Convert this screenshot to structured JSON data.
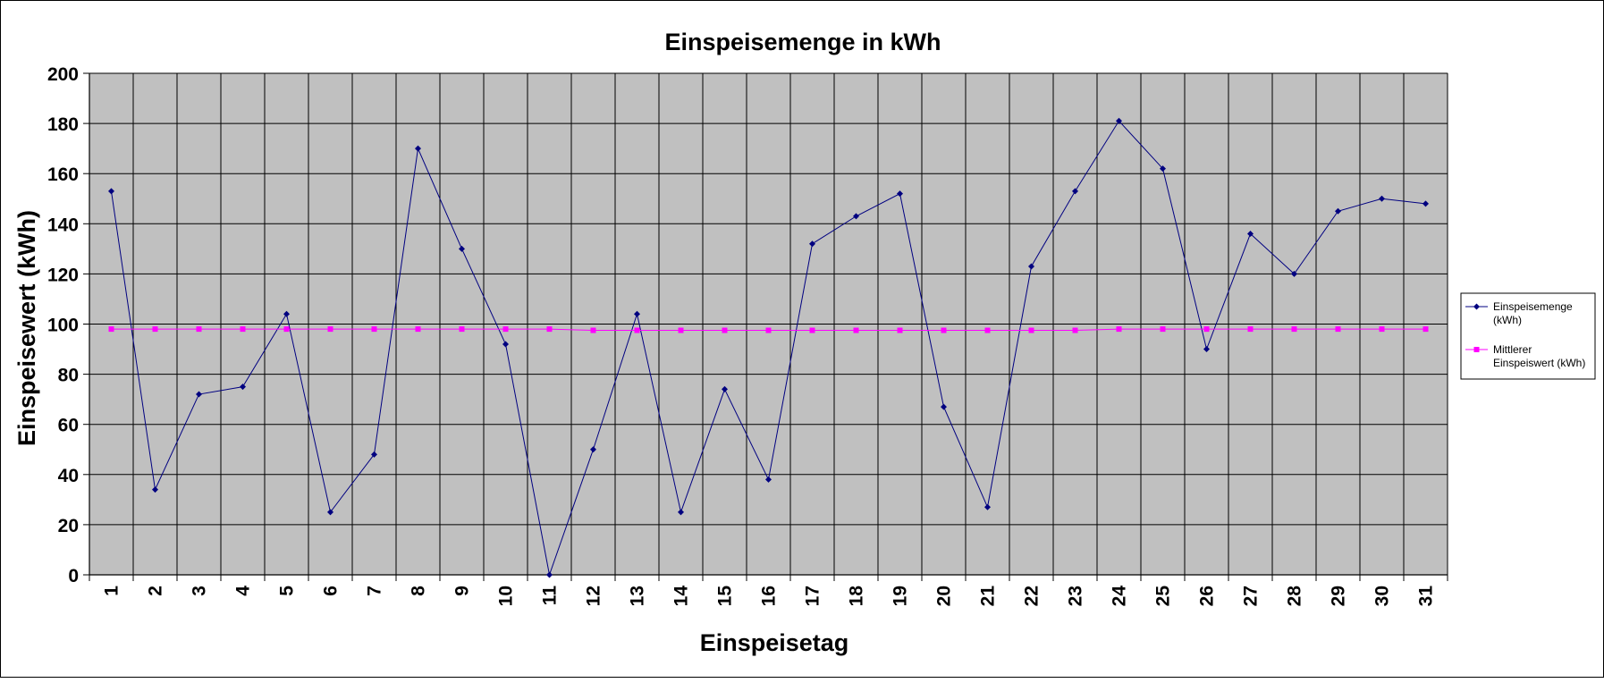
{
  "chart_data": {
    "type": "line",
    "title": "Einspeisemenge in kWh",
    "xlabel": "Einspeisetag",
    "ylabel": "Einspeisewert  (kWh)",
    "ylim": [
      0,
      200
    ],
    "yticks": [
      "0",
      "20",
      "40",
      "60",
      "80",
      "100",
      "120",
      "140",
      "160",
      "180",
      "200"
    ],
    "ytick_values": [
      0,
      20,
      40,
      60,
      80,
      100,
      120,
      140,
      160,
      180,
      200
    ],
    "categories": [
      "1",
      "2",
      "3",
      "4",
      "5",
      "6",
      "7",
      "8",
      "9",
      "10",
      "11",
      "12",
      "13",
      "14",
      "15",
      "16",
      "17",
      "18",
      "19",
      "20",
      "21",
      "22",
      "23",
      "24",
      "25",
      "26",
      "27",
      "28",
      "29",
      "30",
      "31"
    ],
    "grid": true,
    "plot_background": "#c0c0c0",
    "legend_position": "right",
    "series": [
      {
        "name": "Einspeisemenge (kWh)",
        "legend_lines": [
          "Einspeisemenge",
          "(kWh)"
        ],
        "color": "#000080",
        "marker": "diamond",
        "values": [
          153,
          34,
          72,
          75,
          104,
          25,
          48,
          170,
          130,
          92,
          0,
          50,
          104,
          25,
          74,
          38,
          132,
          143,
          152,
          67,
          27,
          123,
          153,
          181,
          162,
          90,
          136,
          120,
          145,
          150,
          148
        ]
      },
      {
        "name": "Mittlerer Einspeiswert (kWh)",
        "legend_lines": [
          "Mittlerer",
          "Einspeiswert (kWh)"
        ],
        "color": "#ff00ff",
        "marker": "square",
        "values": [
          98,
          98,
          98,
          98,
          98,
          98,
          98,
          98,
          98,
          98,
          98,
          97.5,
          97.5,
          97.5,
          97.5,
          97.5,
          97.5,
          97.5,
          97.5,
          97.5,
          97.5,
          97.5,
          97.5,
          98,
          98,
          98,
          98,
          98,
          98,
          98,
          98
        ]
      }
    ]
  }
}
